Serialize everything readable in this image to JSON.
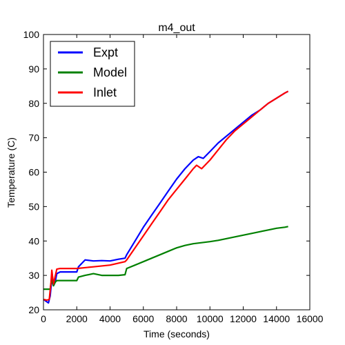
{
  "chart_data": {
    "type": "line",
    "title": "m4_out",
    "xlabel": "Time (seconds)",
    "ylabel": "Temperature (C)",
    "xlim": [
      0,
      16000
    ],
    "ylim": [
      20,
      100
    ],
    "xticks": [
      0,
      2000,
      4000,
      6000,
      8000,
      10000,
      12000,
      14000,
      16000
    ],
    "yticks": [
      20,
      30,
      40,
      50,
      60,
      70,
      80,
      90,
      100
    ],
    "grid": false,
    "legend_position": "top-left",
    "series": [
      {
        "name": "Expt",
        "color": "#0000ff",
        "points": [
          [
            0,
            23
          ],
          [
            150,
            22.5
          ],
          [
            300,
            22
          ],
          [
            400,
            24
          ],
          [
            500,
            29
          ],
          [
            600,
            27
          ],
          [
            700,
            28
          ],
          [
            800,
            30.5
          ],
          [
            1000,
            31
          ],
          [
            1500,
            31
          ],
          [
            2000,
            31
          ],
          [
            2100,
            32.5
          ],
          [
            2300,
            33.5
          ],
          [
            2500,
            34.5
          ],
          [
            3000,
            34.2
          ],
          [
            3500,
            34.3
          ],
          [
            4000,
            34.2
          ],
          [
            4500,
            34.7
          ],
          [
            4900,
            35
          ],
          [
            5000,
            36
          ],
          [
            5500,
            40
          ],
          [
            6000,
            44
          ],
          [
            6500,
            47.5
          ],
          [
            7000,
            51
          ],
          [
            7500,
            54.5
          ],
          [
            8000,
            58
          ],
          [
            8500,
            61
          ],
          [
            9000,
            63.5
          ],
          [
            9300,
            64.5
          ],
          [
            9600,
            64
          ],
          [
            10000,
            66
          ],
          [
            10500,
            68.5
          ],
          [
            11000,
            70.5
          ],
          [
            11500,
            72.5
          ],
          [
            12000,
            74.5
          ],
          [
            12500,
            76.5
          ],
          [
            13000,
            78
          ],
          [
            13500,
            80
          ],
          [
            14000,
            81.5
          ],
          [
            14500,
            83
          ],
          [
            14700,
            83.5
          ]
        ]
      },
      {
        "name": "Model",
        "color": "#008000",
        "points": [
          [
            0,
            26
          ],
          [
            200,
            26
          ],
          [
            400,
            26
          ],
          [
            500,
            29
          ],
          [
            600,
            27
          ],
          [
            700,
            28
          ],
          [
            800,
            28.5
          ],
          [
            1000,
            28.5
          ],
          [
            1500,
            28.5
          ],
          [
            2000,
            28.5
          ],
          [
            2100,
            29.5
          ],
          [
            2500,
            30
          ],
          [
            3000,
            30.5
          ],
          [
            3500,
            30
          ],
          [
            4000,
            30
          ],
          [
            4500,
            30
          ],
          [
            4900,
            30.2
          ],
          [
            5000,
            32
          ],
          [
            5500,
            33
          ],
          [
            6000,
            34
          ],
          [
            6500,
            35
          ],
          [
            7000,
            36
          ],
          [
            7500,
            37
          ],
          [
            8000,
            38
          ],
          [
            8500,
            38.7
          ],
          [
            9000,
            39.2
          ],
          [
            9500,
            39.5
          ],
          [
            10000,
            39.8
          ],
          [
            10500,
            40.2
          ],
          [
            11000,
            40.7
          ],
          [
            11500,
            41.2
          ],
          [
            12000,
            41.7
          ],
          [
            12500,
            42.2
          ],
          [
            13000,
            42.7
          ],
          [
            13500,
            43.2
          ],
          [
            14000,
            43.7
          ],
          [
            14500,
            44
          ],
          [
            14700,
            44.2
          ]
        ]
      },
      {
        "name": "Inlet",
        "color": "#ff0000",
        "points": [
          [
            0,
            23
          ],
          [
            200,
            22.8
          ],
          [
            350,
            23
          ],
          [
            450,
            28
          ],
          [
            500,
            31.5
          ],
          [
            600,
            27.5
          ],
          [
            800,
            31.8
          ],
          [
            1000,
            32
          ],
          [
            1500,
            32
          ],
          [
            2000,
            32
          ],
          [
            3000,
            32.5
          ],
          [
            4000,
            33
          ],
          [
            4900,
            34
          ],
          [
            5000,
            34.5
          ],
          [
            5500,
            38
          ],
          [
            6000,
            41.5
          ],
          [
            6500,
            45
          ],
          [
            7000,
            48.5
          ],
          [
            7500,
            52
          ],
          [
            8000,
            55
          ],
          [
            8500,
            58
          ],
          [
            9000,
            61
          ],
          [
            9200,
            62
          ],
          [
            9500,
            61
          ],
          [
            10000,
            63.5
          ],
          [
            10500,
            66.5
          ],
          [
            11000,
            69.5
          ],
          [
            11500,
            72
          ],
          [
            12000,
            74
          ],
          [
            12500,
            76
          ],
          [
            13000,
            78
          ],
          [
            13500,
            80
          ],
          [
            14000,
            81.5
          ],
          [
            14500,
            83
          ],
          [
            14700,
            83.5
          ]
        ]
      }
    ]
  }
}
